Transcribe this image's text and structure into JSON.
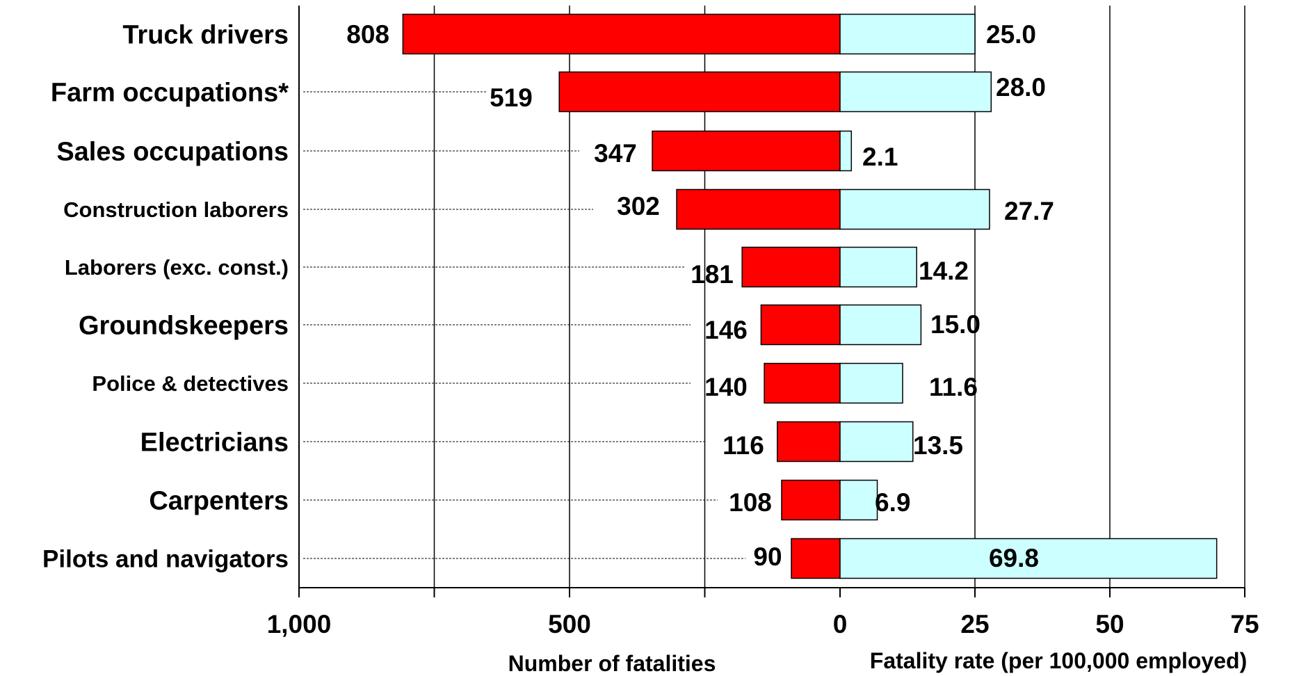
{
  "chart_data": {
    "type": "bar",
    "categories": [
      "Truck drivers",
      "Farm occupations*",
      "Sales occupations",
      "Construction laborers",
      "Laborers (exc. const.)",
      "Groundskeepers",
      "Police & detectives",
      "Electricians",
      "Carpenters",
      "Pilots and navigators"
    ],
    "series": [
      {
        "name": "Number of fatalities",
        "values": [
          808,
          519,
          347,
          302,
          181,
          146,
          140,
          116,
          108,
          90
        ],
        "value_labels": [
          "808",
          "519",
          "347",
          "302",
          "181",
          "146",
          "140",
          "116",
          "108",
          "90"
        ],
        "color": "#ff0000",
        "axis": "left"
      },
      {
        "name": "Fatality rate (per 100,000 employed)",
        "values": [
          25.0,
          28.0,
          2.1,
          27.7,
          14.2,
          15.0,
          11.6,
          13.5,
          6.9,
          69.8
        ],
        "value_labels": [
          "25.0",
          "28.0",
          "2.1",
          "27.7",
          "14.2",
          "15.0",
          "11.6",
          "13.5",
          "6.9",
          "69.8"
        ],
        "color": "#ccffff",
        "axis": "right"
      }
    ],
    "left_axis": {
      "title": "Number of fatalities",
      "range": [
        1000,
        0
      ],
      "ticks": [
        1000,
        500,
        0
      ],
      "tick_labels": [
        "1,000",
        "500",
        "0"
      ],
      "gridlines": [
        1000,
        750,
        500,
        250
      ]
    },
    "right_axis": {
      "title": "Fatality rate (per 100,000 employed)",
      "range": [
        0,
        75
      ],
      "ticks": [
        25,
        50,
        75
      ],
      "tick_labels": [
        "25",
        "50",
        "75"
      ],
      "gridlines": [
        25,
        50,
        75
      ]
    },
    "colors": {
      "fatalities_bar": "#ff0000",
      "rate_bar": "#ccffff",
      "outline": "#000000"
    },
    "grid": true,
    "legend": "none"
  }
}
